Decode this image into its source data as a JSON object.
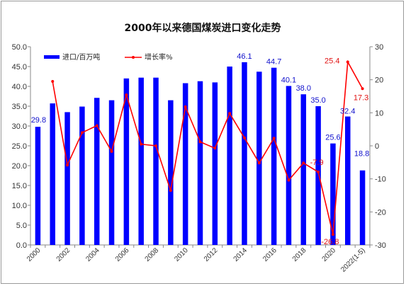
{
  "chart_data": {
    "type": "bar",
    "title": "2000年以来德国煤炭进口变化走势",
    "categories": [
      "2000",
      "2001",
      "2002",
      "2003",
      "2004",
      "2005",
      "2006",
      "2007",
      "2008",
      "2009",
      "2010",
      "2011",
      "2012",
      "2013",
      "2014",
      "2015",
      "2016",
      "2017",
      "2018",
      "2019",
      "2020",
      "2021",
      "2022(1-5)"
    ],
    "x_tick_labels": [
      "2000",
      "2002",
      "2004",
      "2006",
      "2008",
      "2010",
      "2012",
      "2014",
      "2016",
      "2018",
      "2020",
      "2022(1-5)"
    ],
    "series": [
      {
        "name": "进口/百万吨",
        "type": "bar",
        "axis": "left",
        "color": "#0000ff",
        "values": [
          29.8,
          35.7,
          33.5,
          34.9,
          37.1,
          36.5,
          42.0,
          42.2,
          42.2,
          36.5,
          40.8,
          41.3,
          41.0,
          45.0,
          46.1,
          43.7,
          44.7,
          40.1,
          38.0,
          35.0,
          25.6,
          32.4,
          18.8
        ]
      },
      {
        "name": "增长率%",
        "type": "line",
        "axis": "right",
        "color": "#ff0000",
        "values": [
          null,
          19.5,
          -5.8,
          4.0,
          6.1,
          -1.7,
          15.4,
          0.5,
          0.0,
          -13.5,
          11.8,
          1.2,
          -0.7,
          9.8,
          2.4,
          -5.2,
          2.3,
          -10.4,
          -5.2,
          -7.9,
          -26.8,
          25.4,
          17.3
        ]
      }
    ],
    "bar_data_labels": [
      {
        "index": 0,
        "text": "29.8"
      },
      {
        "index": 14,
        "text": "46.1"
      },
      {
        "index": 16,
        "text": "44.7"
      },
      {
        "index": 17,
        "text": "40.1"
      },
      {
        "index": 18,
        "text": "38.0"
      },
      {
        "index": 19,
        "text": "35.0"
      },
      {
        "index": 20,
        "text": "25.6"
      },
      {
        "index": 21,
        "text": "32.4"
      },
      {
        "index": 22,
        "text": "18.8"
      }
    ],
    "line_data_labels": [
      {
        "index": 19,
        "text": "-7.9"
      },
      {
        "index": 20,
        "text": "-26.8"
      },
      {
        "index": 21,
        "text": "25.4"
      },
      {
        "index": 22,
        "text": "17.3"
      }
    ],
    "ylim_left": [
      0,
      50
    ],
    "yticks_left": [
      "0.0",
      "5.0",
      "10.0",
      "15.0",
      "20.0",
      "25.0",
      "30.0",
      "35.0",
      "40.0",
      "45.0",
      "50.0"
    ],
    "ylim_right": [
      -30,
      30
    ],
    "yticks_right": [
      "-30",
      "-20",
      "-10",
      "0",
      "10",
      "20",
      "30"
    ],
    "grid": false,
    "legend_position": "top-left"
  }
}
